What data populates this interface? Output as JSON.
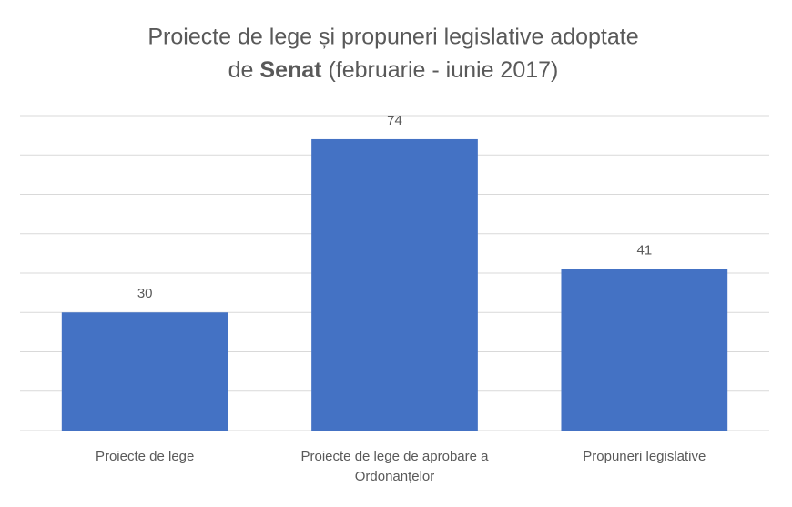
{
  "chart_data": {
    "type": "bar",
    "title": [
      "Proiecte de lege și propuneri legislative adoptate",
      "de",
      "Senat",
      "(februarie - iunie 2017)"
    ],
    "categories": [
      "Proiecte de lege",
      "Proiecte de lege de aprobare a Ordonanțelor",
      "Propuneri legislative"
    ],
    "values": [
      30,
      74,
      41
    ],
    "color": "#4472c4",
    "ylim": [
      0,
      80
    ],
    "yticks": [
      0,
      10,
      20,
      30,
      40,
      50,
      60,
      70,
      80
    ],
    "grid": true
  }
}
